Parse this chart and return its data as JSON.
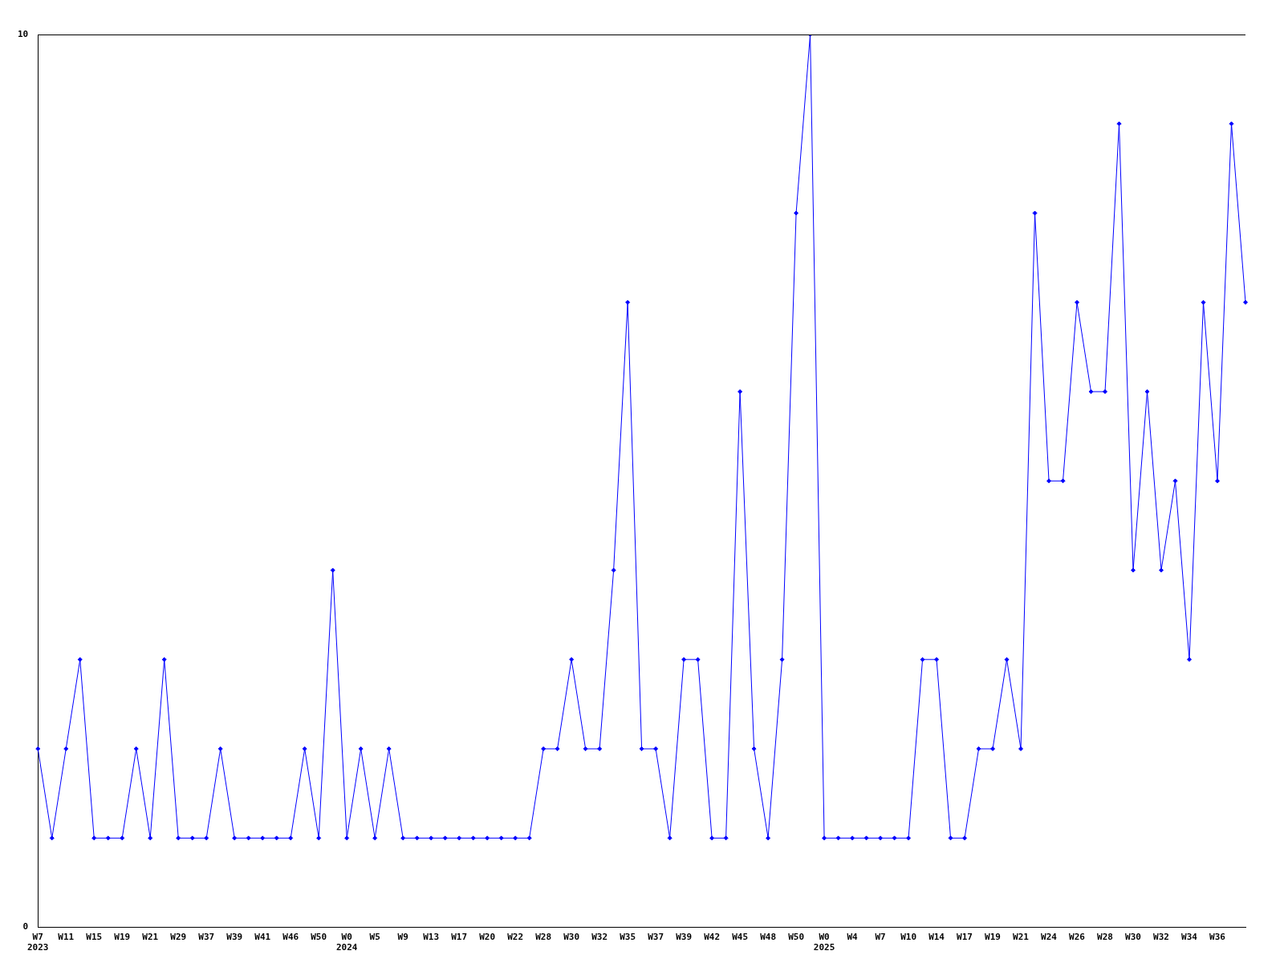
{
  "chart_data": {
    "type": "line",
    "categories": [
      "W7\n2023",
      null,
      "W11",
      null,
      "W15",
      null,
      "W19",
      null,
      "W21",
      null,
      "W29",
      null,
      "W37",
      null,
      "W39",
      null,
      "W41",
      null,
      "W46",
      null,
      "W50",
      null,
      "W0\n2024",
      null,
      "W5",
      null,
      "W9",
      null,
      "W13",
      null,
      "W17",
      null,
      "W20",
      null,
      "W22",
      null,
      "W28",
      null,
      "W30",
      null,
      "W32",
      null,
      "W35",
      null,
      "W37",
      null,
      "W39",
      null,
      "W42",
      null,
      "W45",
      null,
      "W48",
      null,
      "W50",
      null,
      "W0\n2025",
      null,
      "W4",
      null,
      "W7",
      null,
      "W10",
      null,
      "W14",
      null,
      "W17",
      null,
      "W19",
      null,
      "W21",
      null,
      "W24",
      null,
      "W26",
      null,
      "W28",
      null,
      "W30",
      null,
      "W32",
      null,
      "W34",
      null,
      "W36",
      null,
      null
    ],
    "series": [
      {
        "color": "#0000ff",
        "values": [
          2,
          1,
          2,
          3,
          1,
          1,
          1,
          2,
          1,
          3,
          1,
          1,
          1,
          2,
          1,
          1,
          1,
          1,
          1,
          2,
          1,
          4,
          1,
          2,
          1,
          2,
          1,
          1,
          1,
          1,
          1,
          1,
          1,
          1,
          1,
          1,
          2,
          2,
          3,
          2,
          2,
          4,
          7,
          2,
          2,
          1,
          3,
          3,
          1,
          1,
          6,
          2,
          1,
          3,
          8,
          10,
          1,
          1,
          1,
          1,
          1,
          1,
          1,
          3,
          3,
          1,
          1,
          2,
          2,
          3,
          2,
          8,
          5,
          5,
          7,
          6,
          6,
          9,
          4,
          6,
          4,
          5,
          3,
          7,
          5,
          9,
          7
        ]
      }
    ],
    "ylim": [
      0,
      10
    ],
    "yticks": [
      0,
      10
    ],
    "grid": false,
    "legend": false,
    "marker": "diamond",
    "line_style": "solid"
  }
}
